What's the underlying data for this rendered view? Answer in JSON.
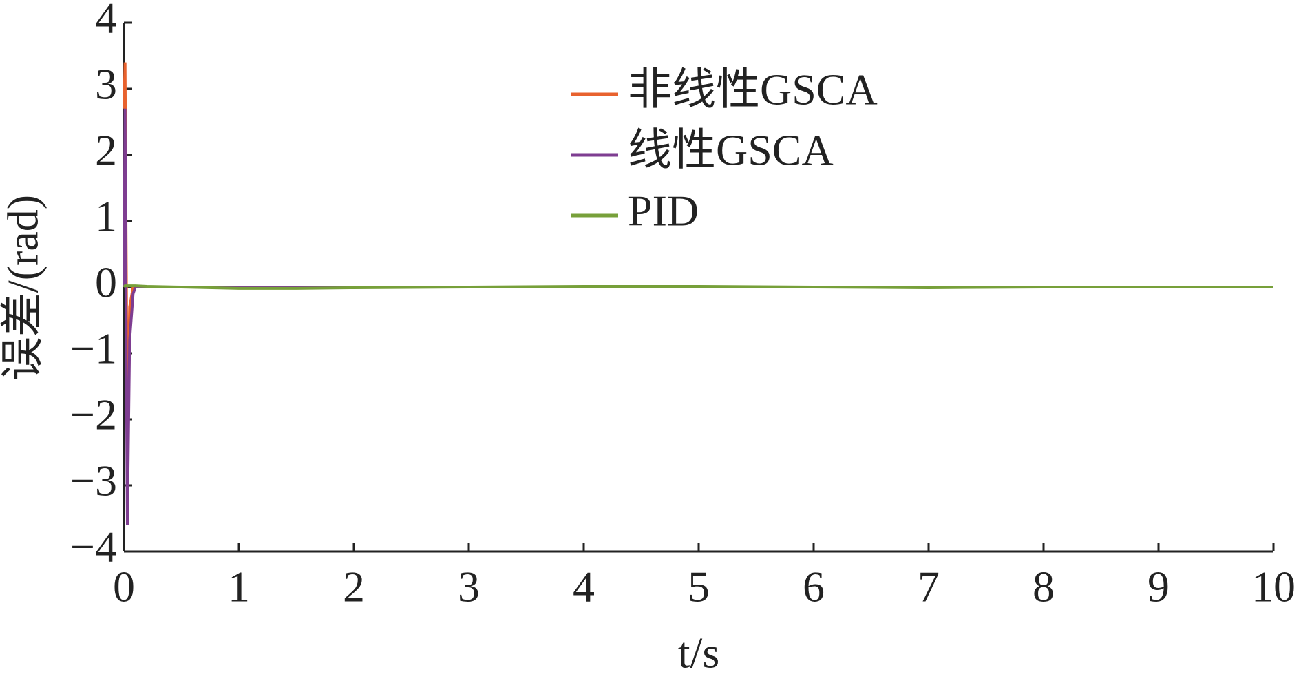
{
  "chart_data": {
    "type": "line",
    "xlabel": "t/s",
    "ylabel": "误差/(rad)",
    "x": [
      0,
      0.01,
      0.02,
      0.03,
      0.05,
      0.08,
      0.1,
      0.2,
      0.5,
      1,
      1.5,
      2,
      3,
      4,
      5,
      6,
      7,
      8,
      9,
      10
    ],
    "series": [
      {
        "name": "非线性GSCA",
        "color": "#e8622e",
        "values": [
          2.7,
          3.4,
          0.5,
          -2.2,
          -0.3,
          0,
          0,
          0,
          0,
          0,
          0,
          0,
          0,
          0,
          0,
          0,
          0,
          0,
          0,
          0
        ]
      },
      {
        "name": "线性GSCA",
        "color": "#7e3d91",
        "values": [
          0,
          2.7,
          -1,
          -3.6,
          -0.8,
          -0.1,
          0,
          0,
          0,
          0,
          0,
          0,
          0,
          0,
          0,
          0,
          0,
          0,
          0,
          0
        ]
      },
      {
        "name": "PID",
        "color": "#77a03a",
        "values": [
          0,
          0.02,
          0.02,
          0.02,
          0.02,
          0.02,
          0.02,
          0.01,
          0,
          -0.02,
          -0.02,
          -0.01,
          0,
          0.01,
          0.01,
          0,
          -0.01,
          0,
          0,
          0
        ]
      }
    ],
    "xlim": [
      0,
      10
    ],
    "xticks": [
      0,
      1,
      2,
      3,
      4,
      5,
      6,
      7,
      8,
      9,
      10
    ],
    "ylim": [
      -4,
      4
    ],
    "yticks": [
      {
        "value": -4,
        "label": "−4"
      },
      {
        "value": -3,
        "label": "−3"
      },
      {
        "value": -2,
        "label": "−2"
      },
      {
        "value": -1,
        "label": "−1"
      },
      0,
      1,
      2,
      3,
      4
    ],
    "grid": false,
    "legend": "top"
  }
}
